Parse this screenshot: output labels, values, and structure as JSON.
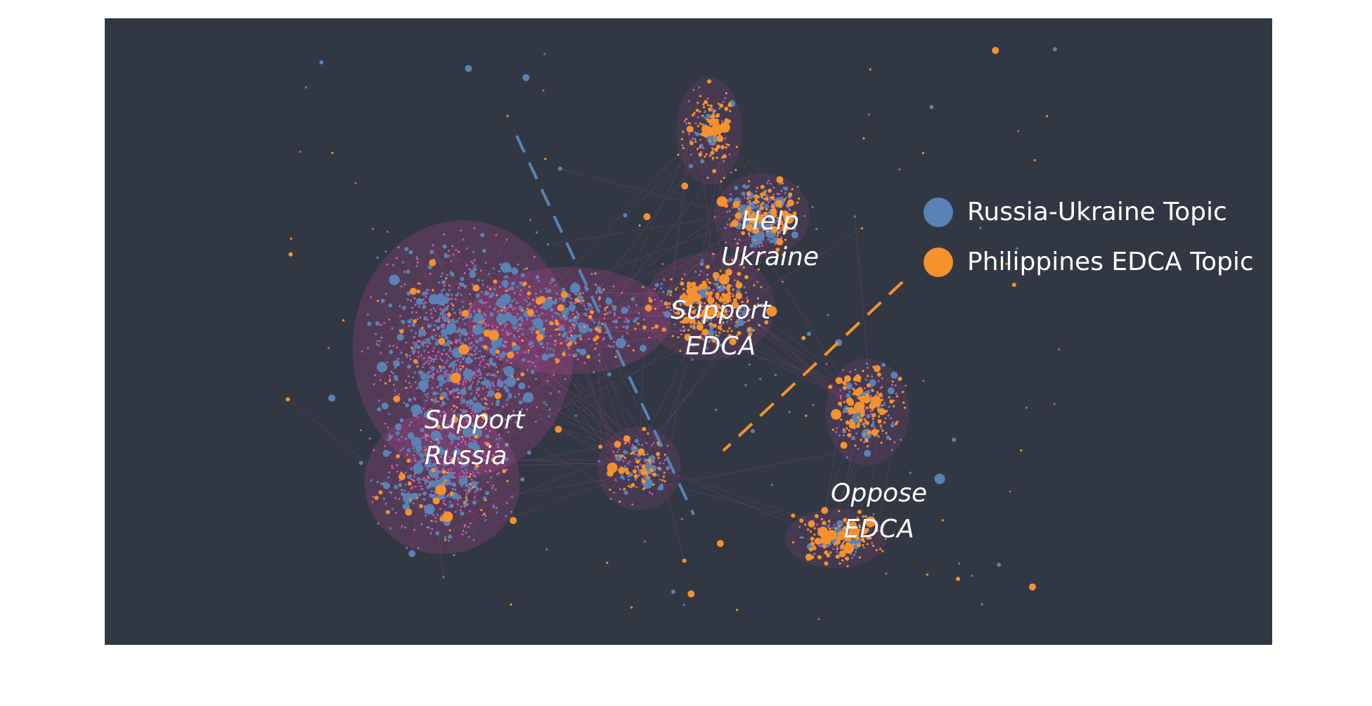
{
  "colors": {
    "background": "#323843",
    "russia_ukraine_topic": "#5a82b4",
    "philippines_edca_topic": "#f5922e",
    "edges": "#c2489b"
  },
  "legend": [
    {
      "label": "Russia-Ukraine Topic",
      "color": "#5a82b4"
    },
    {
      "label": "Philippines EDCA Topic",
      "color": "#f5922e"
    }
  ],
  "clusters": {
    "help_ukraine": {
      "line1": "Help",
      "line2": "Ukraine"
    },
    "support_edca": {
      "line1": "Support",
      "line2": "EDCA"
    },
    "support_russia": {
      "line1": "Support",
      "line2": "Russia"
    },
    "oppose_edca": {
      "line1": "Oppose",
      "line2": "EDCA"
    }
  }
}
